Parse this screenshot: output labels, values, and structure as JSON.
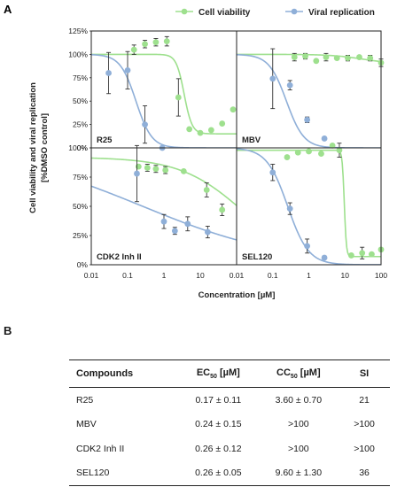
{
  "panel_a_letter": "A",
  "panel_b_letter": "B",
  "chart_data": {
    "type": "scatter",
    "ylabel_lines": [
      "Cell viability and viral replication",
      "[%DMSO control]"
    ],
    "xlabel": "Concentration [µM]",
    "x_scale": "log",
    "xlim": [
      0.01,
      100
    ],
    "ylim": [
      0,
      125
    ],
    "x_ticks": [
      "0.01",
      "0.1",
      "1",
      "10"
    ],
    "x_ticks_last": [
      "0.01",
      "0.1",
      "1",
      "10",
      "100"
    ],
    "y_ticks": [
      "0%",
      "25%",
      "50%",
      "75%",
      "100%",
      "125%"
    ],
    "y_ticks_lower": [
      "0%",
      "25%",
      "50%",
      "75%",
      "100%"
    ],
    "legend": {
      "placement": "top",
      "entries": [
        {
          "label": "Cell viability",
          "color": "#9ee08e"
        },
        {
          "label": "Viral replication",
          "color": "#8fafd8"
        }
      ]
    },
    "colors": {
      "viability": "#9ee08e",
      "replication": "#8fafd8",
      "errorbar": "#333333"
    },
    "panels": [
      {
        "label": "R25",
        "viability": {
          "points": [
            {
              "x": 0.15,
              "y": 105,
              "err": 5
            },
            {
              "x": 0.3,
              "y": 111,
              "err": 4
            },
            {
              "x": 0.6,
              "y": 113,
              "err": 4
            },
            {
              "x": 1.2,
              "y": 114,
              "err": 5
            },
            {
              "x": 2.5,
              "y": 54,
              "err": 20
            },
            {
              "x": 5,
              "y": 20,
              "err": 0
            },
            {
              "x": 10,
              "y": 16,
              "err": 0
            },
            {
              "x": 20,
              "y": 19,
              "err": 0
            },
            {
              "x": 40,
              "y": 26,
              "err": 0
            },
            {
              "x": 80,
              "y": 41,
              "err": 0
            }
          ],
          "fit": {
            "top": 100,
            "bottom": 15,
            "ec50": 3.6,
            "hill": 4
          }
        },
        "replication": {
          "points": [
            {
              "x": 0.03,
              "y": 80,
              "err": 22
            },
            {
              "x": 0.1,
              "y": 83,
              "err": 20
            },
            {
              "x": 0.3,
              "y": 25,
              "err": 20
            },
            {
              "x": 0.9,
              "y": 0,
              "err": 0
            }
          ],
          "fit": {
            "top": 100,
            "bottom": 0,
            "ec50": 0.17,
            "hill": 2
          }
        }
      },
      {
        "label": "MBV",
        "viability": {
          "points": [
            {
              "x": 0.4,
              "y": 97,
              "err": 4
            },
            {
              "x": 0.8,
              "y": 98,
              "err": 3
            },
            {
              "x": 1.6,
              "y": 93,
              "err": 0
            },
            {
              "x": 3,
              "y": 97,
              "err": 4
            },
            {
              "x": 6,
              "y": 96,
              "err": 0
            },
            {
              "x": 12,
              "y": 96,
              "err": 3
            },
            {
              "x": 25,
              "y": 97,
              "err": 0
            },
            {
              "x": 50,
              "y": 96,
              "err": 3
            },
            {
              "x": 100,
              "y": 91,
              "err": 4
            }
          ],
          "fit": {
            "top": 100,
            "bottom": 90,
            "ec50": 30,
            "hill": 1
          }
        },
        "replication": {
          "points": [
            {
              "x": 0.1,
              "y": 74,
              "err": 32
            },
            {
              "x": 0.3,
              "y": 67,
              "err": 5
            },
            {
              "x": 0.9,
              "y": 30,
              "err": 3
            },
            {
              "x": 2.7,
              "y": 10,
              "err": 0
            }
          ],
          "fit": {
            "top": 100,
            "bottom": 0,
            "ec50": 0.24,
            "hill": 1.8
          }
        }
      },
      {
        "label": "CDK2 Inh II",
        "viability": {
          "points": [
            {
              "x": 0.2,
              "y": 84,
              "err": 0
            },
            {
              "x": 0.35,
              "y": 83,
              "err": 3
            },
            {
              "x": 0.6,
              "y": 82,
              "err": 3
            },
            {
              "x": 1.1,
              "y": 81,
              "err": 3
            },
            {
              "x": 3.5,
              "y": 80,
              "err": 0
            },
            {
              "x": 15,
              "y": 64,
              "err": 6
            },
            {
              "x": 40,
              "y": 47,
              "err": 5
            }
          ],
          "fit": {
            "top": 92,
            "bottom": 0,
            "ec50": 150,
            "hill": 0.5
          }
        },
        "replication": {
          "points": [
            {
              "x": 0.18,
              "y": 78,
              "err": 24
            },
            {
              "x": 1,
              "y": 37,
              "err": 6
            },
            {
              "x": 2,
              "y": 29,
              "err": 3
            },
            {
              "x": 4.5,
              "y": 35,
              "err": 6
            },
            {
              "x": 16,
              "y": 28,
              "err": 5
            }
          ],
          "fit": {
            "top": 100,
            "bottom": 0,
            "ec50": 0.26,
            "hill": 0.22
          }
        }
      },
      {
        "label": "SEL120",
        "viability": {
          "points": [
            {
              "x": 0.25,
              "y": 92,
              "err": 0
            },
            {
              "x": 0.5,
              "y": 96,
              "err": 0
            },
            {
              "x": 1,
              "y": 97,
              "err": 0
            },
            {
              "x": 2.2,
              "y": 95,
              "err": 0
            },
            {
              "x": 4.5,
              "y": 102,
              "err": 0
            },
            {
              "x": 7,
              "y": 98,
              "err": 6
            },
            {
              "x": 15,
              "y": 8,
              "err": 0
            },
            {
              "x": 30,
              "y": 10,
              "err": 5
            },
            {
              "x": 55,
              "y": 9,
              "err": 0
            },
            {
              "x": 100,
              "y": 13,
              "err": 0
            }
          ],
          "fit": {
            "top": 98,
            "bottom": 7,
            "ec50": 9.6,
            "hill": 15
          }
        },
        "replication": {
          "points": [
            {
              "x": 0.1,
              "y": 79,
              "err": 7
            },
            {
              "x": 0.3,
              "y": 48,
              "err": 5
            },
            {
              "x": 0.9,
              "y": 16,
              "err": 6
            },
            {
              "x": 2.7,
              "y": 6,
              "err": 0
            }
          ],
          "fit": {
            "top": 100,
            "bottom": 0,
            "ec50": 0.26,
            "hill": 1.5
          }
        }
      }
    ]
  },
  "table": {
    "headers": {
      "compounds": "Compounds",
      "ec_base": "EC",
      "ec_sub": "50",
      "ec_unit": " [µM]",
      "cc_base": "CC",
      "cc_sub": "50",
      "cc_unit": " [µM]",
      "si": "SI"
    },
    "rows": [
      {
        "compound": "R25",
        "ec50": "0.17 ± 0.11",
        "cc50": "3.60 ± 0.70",
        "si": "21"
      },
      {
        "compound": "MBV",
        "ec50": "0.24 ± 0.15",
        "cc50": ">100",
        "si": ">100"
      },
      {
        "compound": "CDK2 Inh II",
        "ec50": "0.26 ± 0.12",
        "cc50": ">100",
        "si": ">100"
      },
      {
        "compound": "SEL120",
        "ec50": "0.26 ± 0.05",
        "cc50": "9.60 ± 1.30",
        "si": "36"
      }
    ]
  }
}
